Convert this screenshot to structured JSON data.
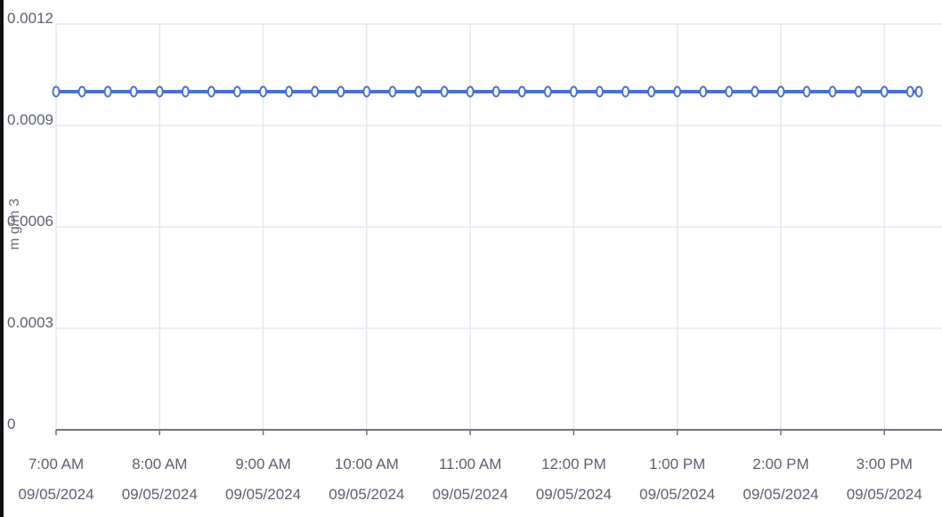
{
  "chart_data": {
    "type": "line",
    "ylabel": "m g/m 3",
    "ylim": [
      0,
      0.0012
    ],
    "y_ticks": [
      "0",
      "0.0003",
      "0.0006",
      "0.0009",
      "0.0012"
    ],
    "y_tick_values": [
      0,
      0.0003,
      0.0006,
      0.0009,
      0.0012
    ],
    "x_range": [
      "2024-09-05T07:00",
      "2024-09-05T15:20"
    ],
    "x_ticks": [
      {
        "value": "2024-09-05T07:00",
        "time": "7:00 AM",
        "date": "09/05/2024"
      },
      {
        "value": "2024-09-05T08:00",
        "time": "8:00 AM",
        "date": "09/05/2024"
      },
      {
        "value": "2024-09-05T09:00",
        "time": "9:00 AM",
        "date": "09/05/2024"
      },
      {
        "value": "2024-09-05T10:00",
        "time": "10:00 AM",
        "date": "09/05/2024"
      },
      {
        "value": "2024-09-05T11:00",
        "time": "11:00 AM",
        "date": "09/05/2024"
      },
      {
        "value": "2024-09-05T12:00",
        "time": "12:00 PM",
        "date": "09/05/2024"
      },
      {
        "value": "2024-09-05T13:00",
        "time": "1:00 PM",
        "date": "09/05/2024"
      },
      {
        "value": "2024-09-05T14:00",
        "time": "2:00 PM",
        "date": "09/05/2024"
      },
      {
        "value": "2024-09-05T15:00",
        "time": "3:00 PM",
        "date": "09/05/2024"
      }
    ],
    "grid": true,
    "series": [
      {
        "color": "#4a6fd6",
        "points": [
          {
            "x": "2024-09-05T07:00",
            "y": 0.001
          },
          {
            "x": "2024-09-05T07:15",
            "y": 0.001
          },
          {
            "x": "2024-09-05T07:30",
            "y": 0.001
          },
          {
            "x": "2024-09-05T07:45",
            "y": 0.001
          },
          {
            "x": "2024-09-05T08:00",
            "y": 0.001
          },
          {
            "x": "2024-09-05T08:15",
            "y": 0.001
          },
          {
            "x": "2024-09-05T08:30",
            "y": 0.001
          },
          {
            "x": "2024-09-05T08:45",
            "y": 0.001
          },
          {
            "x": "2024-09-05T09:00",
            "y": 0.001
          },
          {
            "x": "2024-09-05T09:15",
            "y": 0.001
          },
          {
            "x": "2024-09-05T09:30",
            "y": 0.001
          },
          {
            "x": "2024-09-05T09:45",
            "y": 0.001
          },
          {
            "x": "2024-09-05T10:00",
            "y": 0.001
          },
          {
            "x": "2024-09-05T10:15",
            "y": 0.001
          },
          {
            "x": "2024-09-05T10:30",
            "y": 0.001
          },
          {
            "x": "2024-09-05T10:45",
            "y": 0.001
          },
          {
            "x": "2024-09-05T11:00",
            "y": 0.001
          },
          {
            "x": "2024-09-05T11:15",
            "y": 0.001
          },
          {
            "x": "2024-09-05T11:30",
            "y": 0.001
          },
          {
            "x": "2024-09-05T11:45",
            "y": 0.001
          },
          {
            "x": "2024-09-05T12:00",
            "y": 0.001
          },
          {
            "x": "2024-09-05T12:15",
            "y": 0.001
          },
          {
            "x": "2024-09-05T12:30",
            "y": 0.001
          },
          {
            "x": "2024-09-05T12:45",
            "y": 0.001
          },
          {
            "x": "2024-09-05T13:00",
            "y": 0.001
          },
          {
            "x": "2024-09-05T13:15",
            "y": 0.001
          },
          {
            "x": "2024-09-05T13:30",
            "y": 0.001
          },
          {
            "x": "2024-09-05T13:45",
            "y": 0.001
          },
          {
            "x": "2024-09-05T14:00",
            "y": 0.001
          },
          {
            "x": "2024-09-05T14:15",
            "y": 0.001
          },
          {
            "x": "2024-09-05T14:30",
            "y": 0.001
          },
          {
            "x": "2024-09-05T14:45",
            "y": 0.001
          },
          {
            "x": "2024-09-05T15:00",
            "y": 0.001
          },
          {
            "x": "2024-09-05T15:15",
            "y": 0.001
          },
          {
            "x": "2024-09-05T15:20",
            "y": 0.001
          }
        ]
      }
    ]
  }
}
